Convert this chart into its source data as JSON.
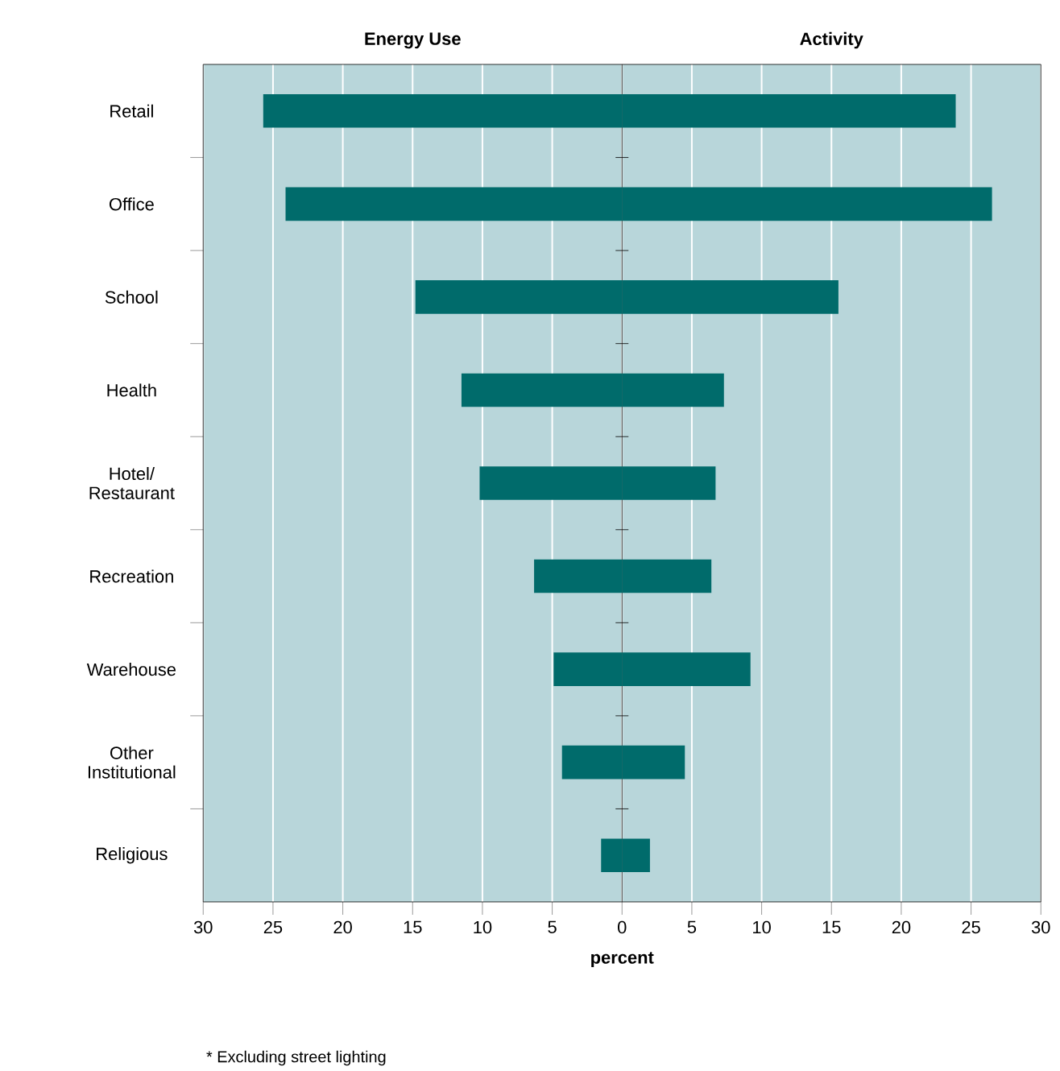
{
  "chart_data": {
    "type": "bar",
    "orientation": "horizontal",
    "stacked": true,
    "xlabel": "percent",
    "categories": [
      "Retail",
      "Office",
      "School",
      "Health",
      "Hotel/ Restaurant",
      "Recreation",
      "Warehouse",
      "Other Institutional",
      "Religious"
    ],
    "series": [
      {
        "name": "Energy Use",
        "color": "#006b6b",
        "values": [
          -25.7,
          -24.1,
          -14.8,
          -11.5,
          -10.2,
          -6.3,
          -4.9,
          -4.3,
          -1.5
        ]
      },
      {
        "name": "Activity",
        "color": "#006b6b",
        "values": [
          23.9,
          26.5,
          15.5,
          7.3,
          6.7,
          6.4,
          9.2,
          4.5,
          2.0
        ]
      }
    ],
    "xlim": [
      -30,
      30
    ],
    "xticks": [
      {
        "value": -30,
        "label": "30"
      },
      {
        "value": -25,
        "label": "25"
      },
      {
        "value": -20,
        "label": "20"
      },
      {
        "value": -15,
        "label": "15"
      },
      {
        "value": -10,
        "label": "10"
      },
      {
        "value": -5,
        "label": "5"
      },
      0,
      5,
      10,
      15,
      20,
      25,
      30
    ],
    "grid": "x",
    "annotations": [
      "* Excluding street lighting"
    ]
  }
}
